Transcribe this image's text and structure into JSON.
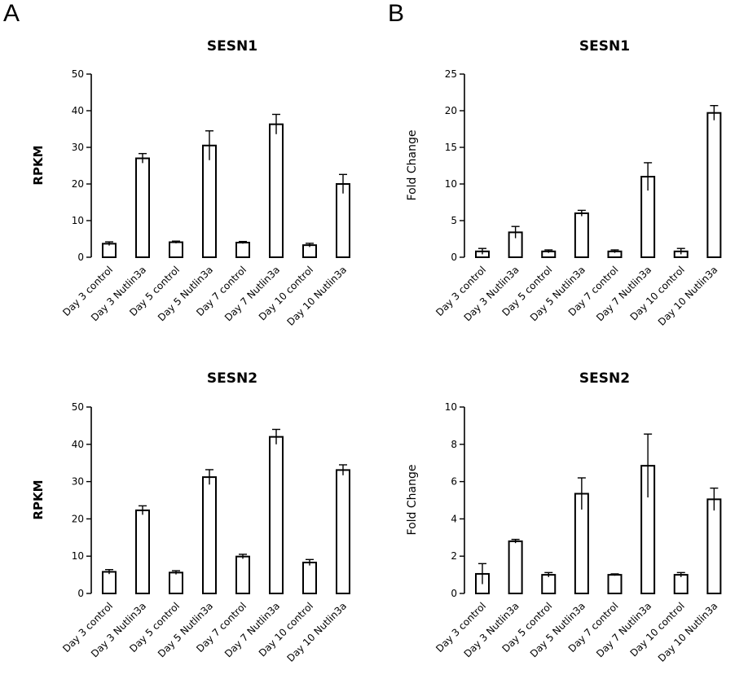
{
  "panels": {
    "a_label": "A",
    "b_label": "B"
  },
  "chart_data": [
    {
      "type": "bar",
      "title": "SESN1",
      "ylabel": "RPKM",
      "xlabel": "",
      "ylim": [
        0,
        50
      ],
      "yticks": [
        0,
        10,
        20,
        30,
        40,
        50
      ],
      "categories": [
        "Day 3 control",
        "Day 3 Nutlin3a",
        "Day 5 control",
        "Day 5 Nutlin3a",
        "Day 7 control",
        "Day 7 Nutlin3a",
        "Day 10 control",
        "Day 10 Nutlin3a"
      ],
      "values": [
        3.7,
        27.0,
        4.1,
        30.5,
        4.0,
        36.3,
        3.3,
        20.0
      ],
      "errors": [
        0.5,
        1.3,
        0.3,
        4.0,
        0.3,
        2.7,
        0.5,
        2.6
      ]
    },
    {
      "type": "bar",
      "title": "SESN1",
      "ylabel": "Fold Change",
      "xlabel": "",
      "ylim": [
        0,
        25
      ],
      "yticks": [
        0,
        5,
        10,
        15,
        20,
        25
      ],
      "categories": [
        "Day 3 control",
        "Day 3 Nutlin3a",
        "Day 5 control",
        "Day 5 Nutlin3a",
        "Day 7 control",
        "Day 7 Nutlin3a",
        "Day 10 control",
        "Day 10 Nutlin3a"
      ],
      "values": [
        0.8,
        3.4,
        0.8,
        6.0,
        0.8,
        11.0,
        0.8,
        19.7
      ],
      "errors": [
        0.4,
        0.8,
        0.2,
        0.4,
        0.2,
        1.9,
        0.4,
        1.0
      ]
    },
    {
      "type": "bar",
      "title": "SESN2",
      "ylabel": "RPKM",
      "xlabel": "",
      "ylim": [
        0,
        50
      ],
      "yticks": [
        0,
        10,
        20,
        30,
        40,
        50
      ],
      "categories": [
        "Day 3 control",
        "Day 3 Nutlin3a",
        "Day 5 control",
        "Day 5 Nutlin3a",
        "Day 7 control",
        "Day 7 Nutlin3a",
        "Day 10 control",
        "Day 10 Nutlin3a"
      ],
      "values": [
        5.8,
        22.3,
        5.6,
        31.2,
        9.9,
        42.0,
        8.3,
        33.1
      ],
      "errors": [
        0.6,
        1.2,
        0.5,
        2.0,
        0.6,
        2.0,
        0.8,
        1.4
      ]
    },
    {
      "type": "bar",
      "title": "SESN2",
      "ylabel": "Fold Change",
      "xlabel": "",
      "ylim": [
        0,
        10
      ],
      "yticks": [
        0,
        2,
        4,
        6,
        8,
        10
      ],
      "categories": [
        "Day 3 control",
        "Day 3 Nutlin3a",
        "Day 5 control",
        "Day 5 Nutlin3a",
        "Day 7 control",
        "Day 7 Nutlin3a",
        "Day 10 control",
        "Day 10 Nutlin3a"
      ],
      "values": [
        1.05,
        2.8,
        1.0,
        5.35,
        1.0,
        6.85,
        1.0,
        5.05
      ],
      "errors": [
        0.55,
        0.1,
        0.12,
        0.85,
        0.05,
        1.7,
        0.12,
        0.6
      ]
    }
  ]
}
